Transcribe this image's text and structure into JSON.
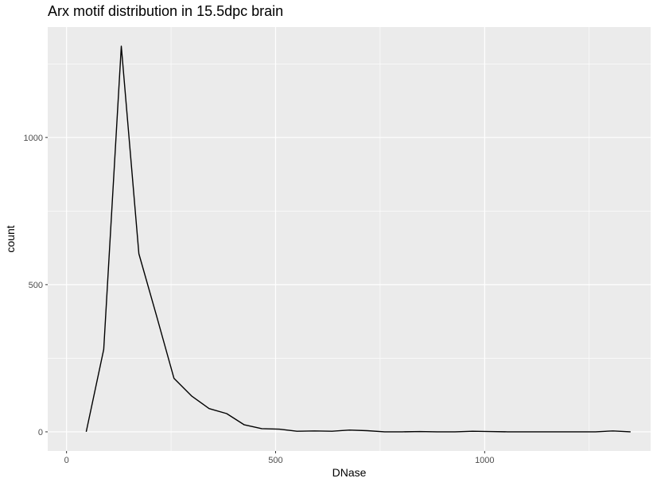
{
  "chart_data": {
    "type": "line",
    "title": "Arx motif distribution in 15.5dpc brain",
    "xlabel": "DNase",
    "ylabel": "count",
    "xlim": [
      -45,
      1397
    ],
    "ylim": [
      -65,
      1375
    ],
    "x_ticks": [
      0,
      500,
      1000
    ],
    "y_ticks": [
      0,
      500,
      1000
    ],
    "grid": true,
    "colors": {
      "panel": "#ebebeb",
      "grid": "#ffffff",
      "line": "#000000"
    },
    "series": [
      {
        "x": [
          47,
          89,
          131,
          173,
          215,
          257,
          299,
          341,
          383,
          425,
          467,
          509,
          551,
          593,
          635,
          677,
          719,
          761,
          803,
          845,
          887,
          929,
          971,
          1013,
          1055,
          1097,
          1139,
          1181,
          1223,
          1265,
          1307,
          1349
        ],
        "y": [
          0,
          280,
          1310,
          605,
          395,
          182,
          122,
          79,
          62,
          24,
          11,
          9,
          2,
          3,
          2,
          6,
          4,
          0,
          0,
          1,
          0,
          0,
          2,
          1,
          0,
          0,
          0,
          0,
          0,
          0,
          3,
          0
        ]
      }
    ]
  }
}
